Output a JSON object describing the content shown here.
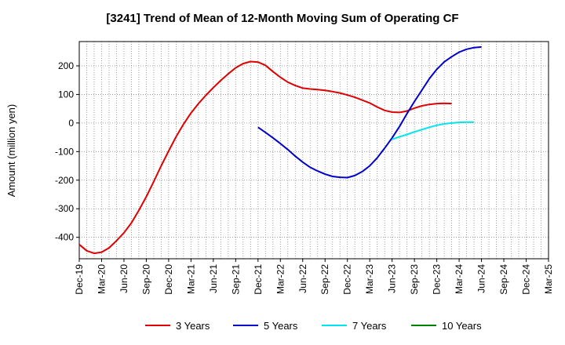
{
  "chart_data": {
    "type": "line",
    "title": "[3241]  Trend of Mean of 12-Month Moving Sum of Operating CF",
    "xlabel": "",
    "ylabel": "Amount (million yen)",
    "x_tick_labels": [
      "Dec-19",
      "Mar-20",
      "Jun-20",
      "Sep-20",
      "Dec-20",
      "Mar-21",
      "Jun-21",
      "Sep-21",
      "Dec-21",
      "Mar-22",
      "Jun-22",
      "Sep-22",
      "Dec-22",
      "Mar-23",
      "Jun-23",
      "Sep-23",
      "Dec-23",
      "Mar-24",
      "Jun-24",
      "Sep-24",
      "Dec-24",
      "Mar-25"
    ],
    "y_ticks": [
      -400,
      -300,
      -200,
      -100,
      0,
      100,
      200
    ],
    "ylim": [
      -475,
      285
    ],
    "grid": true,
    "legend_position": "bottom",
    "series": [
      {
        "name": "3 Years",
        "color": "#e00000",
        "points": [
          [
            0,
            -425
          ],
          [
            1,
            -447
          ],
          [
            2,
            -456
          ],
          [
            3,
            -452
          ],
          [
            4,
            -437
          ],
          [
            5,
            -412
          ],
          [
            6,
            -384
          ],
          [
            7,
            -350
          ],
          [
            8,
            -306
          ],
          [
            9,
            -258
          ],
          [
            10,
            -205
          ],
          [
            11,
            -150
          ],
          [
            12,
            -98
          ],
          [
            13,
            -48
          ],
          [
            14,
            -4
          ],
          [
            15,
            35
          ],
          [
            16,
            68
          ],
          [
            17,
            97
          ],
          [
            18,
            124
          ],
          [
            19,
            149
          ],
          [
            20,
            172
          ],
          [
            21,
            193
          ],
          [
            22,
            208
          ],
          [
            23,
            215
          ],
          [
            24,
            213
          ],
          [
            25,
            202
          ],
          [
            26,
            180
          ],
          [
            27,
            160
          ],
          [
            28,
            143
          ],
          [
            29,
            131
          ],
          [
            30,
            122
          ],
          [
            31,
            119
          ],
          [
            32,
            117
          ],
          [
            33,
            114
          ],
          [
            34,
            110
          ],
          [
            35,
            105
          ],
          [
            36,
            98
          ],
          [
            37,
            90
          ],
          [
            38,
            80
          ],
          [
            39,
            70
          ],
          [
            40,
            56
          ],
          [
            41,
            44
          ],
          [
            42,
            38
          ],
          [
            43,
            37
          ],
          [
            44,
            42
          ],
          [
            45,
            52
          ],
          [
            46,
            60
          ],
          [
            47,
            65
          ],
          [
            48,
            68
          ],
          [
            49,
            69
          ],
          [
            50,
            68
          ]
        ]
      },
      {
        "name": "5 Years",
        "color": "#0000cc",
        "points": [
          [
            24,
            -15
          ],
          [
            25,
            -33
          ],
          [
            26,
            -52
          ],
          [
            27,
            -72
          ],
          [
            28,
            -93
          ],
          [
            29,
            -116
          ],
          [
            30,
            -137
          ],
          [
            31,
            -155
          ],
          [
            32,
            -168
          ],
          [
            33,
            -179
          ],
          [
            34,
            -187
          ],
          [
            35,
            -190
          ],
          [
            36,
            -191
          ],
          [
            37,
            -184
          ],
          [
            38,
            -170
          ],
          [
            39,
            -150
          ],
          [
            40,
            -122
          ],
          [
            41,
            -88
          ],
          [
            42,
            -52
          ],
          [
            43,
            -12
          ],
          [
            44,
            33
          ],
          [
            45,
            75
          ],
          [
            46,
            115
          ],
          [
            47,
            155
          ],
          [
            48,
            188
          ],
          [
            49,
            214
          ],
          [
            50,
            232
          ],
          [
            51,
            248
          ],
          [
            52,
            258
          ],
          [
            53,
            264
          ],
          [
            54,
            266
          ]
        ]
      },
      {
        "name": "7 Years",
        "color": "#00e5ee",
        "points": [
          [
            42,
            -57
          ],
          [
            43,
            -48
          ],
          [
            44,
            -40
          ],
          [
            45,
            -31
          ],
          [
            46,
            -23
          ],
          [
            47,
            -15
          ],
          [
            48,
            -8
          ],
          [
            49,
            -3
          ],
          [
            50,
            0
          ],
          [
            51,
            2
          ],
          [
            52,
            3
          ],
          [
            53,
            3
          ]
        ]
      },
      {
        "name": "10 Years",
        "color": "#008000",
        "points": []
      }
    ]
  }
}
